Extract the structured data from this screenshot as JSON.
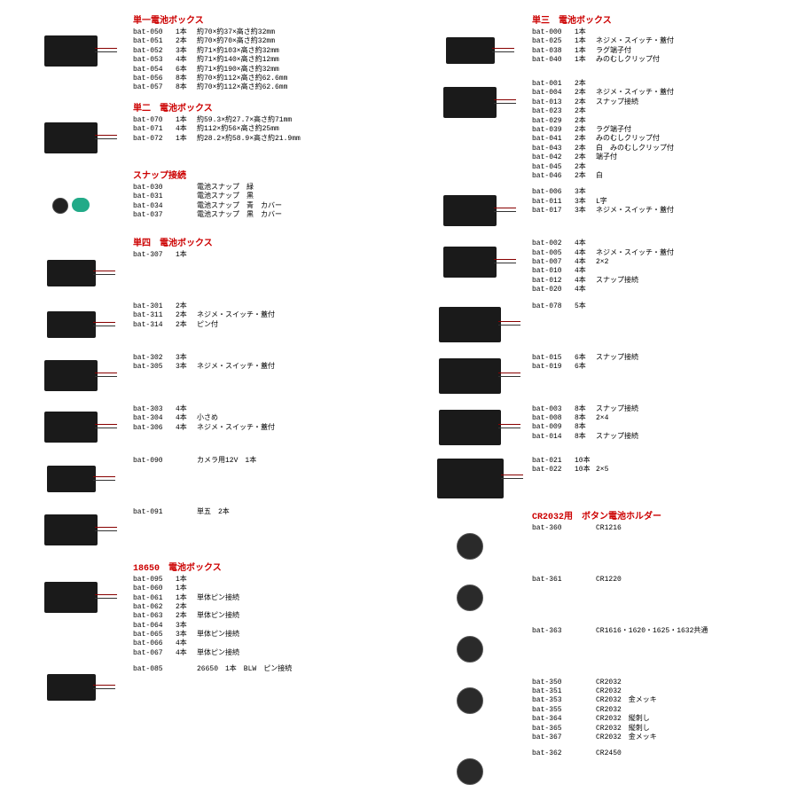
{
  "left": [
    {
      "title": "単一電池ボックス",
      "thumb": "s2",
      "items": [
        {
          "c": "bat-050",
          "q": "1本",
          "d": "約70×約37×高さ約32mm"
        },
        {
          "c": "bat-051",
          "q": "2本",
          "d": "約70×約70×高さ約32mm"
        },
        {
          "c": "bat-052",
          "q": "3本",
          "d": "約71×約103×高さ約32mm"
        },
        {
          "c": "bat-053",
          "q": "4本",
          "d": "約71×約140×高さ約12mm"
        },
        {
          "c": "bat-054",
          "q": "6本",
          "d": "約71×約190×高さ約32mm"
        },
        {
          "c": "bat-056",
          "q": "8本",
          "d": "約70×約112×高さ約62.6mm"
        },
        {
          "c": "bat-057",
          "q": "8本",
          "d": "約70×約112×高さ約62.6mm"
        }
      ]
    },
    {
      "title": "単二　電池ボックス",
      "thumb": "s2",
      "items": [
        {
          "c": "bat-070",
          "q": "1本",
          "d": "約59.3×約27.7×高さ約71mm"
        },
        {
          "c": "bat-071",
          "q": "4本",
          "d": "約112×約56×高さ約25mm"
        },
        {
          "c": "bat-072",
          "q": "1本",
          "d": "約28.2×約58.9×高さ約21.9mm"
        }
      ]
    },
    {
      "title": "スナップ接続",
      "thumb": "snap",
      "items": [
        {
          "c": "bat-030",
          "q": "",
          "d": "電池スナップ　緑"
        },
        {
          "c": "bat-031",
          "q": "",
          "d": "電池スナップ　黒"
        },
        {
          "c": "bat-034",
          "q": "",
          "d": "電池スナップ　青　カバー"
        },
        {
          "c": "bat-037",
          "q": "",
          "d": "電池スナップ　黒　カバー"
        }
      ]
    },
    {
      "title": "単四　電池ボックス",
      "thumb": "s1",
      "items": [
        {
          "c": "bat-307",
          "q": "1本",
          "d": ""
        }
      ]
    },
    {
      "title": "",
      "thumb": "s1",
      "items": [
        {
          "c": "bat-301",
          "q": "2本",
          "d": ""
        },
        {
          "c": "bat-311",
          "q": "2本",
          "d": "ネジメ・スイッチ・蓋付"
        },
        {
          "c": "bat-314",
          "q": "2本",
          "d": "ピン付"
        }
      ]
    },
    {
      "title": "",
      "thumb": "s2",
      "items": [
        {
          "c": "bat-302",
          "q": "3本",
          "d": ""
        },
        {
          "c": "bat-305",
          "q": "3本",
          "d": "ネジメ・スイッチ・蓋付"
        }
      ]
    },
    {
      "title": "",
      "thumb": "s2",
      "items": [
        {
          "c": "bat-303",
          "q": "4本",
          "d": ""
        },
        {
          "c": "bat-304",
          "q": "4本",
          "d": "小さめ"
        },
        {
          "c": "bat-306",
          "q": "4本",
          "d": "ネジメ・スイッチ・蓋付"
        }
      ]
    },
    {
      "title": "",
      "thumb": "s1",
      "items": [
        {
          "c": "bat-090",
          "q": "",
          "d": "カメラ用12V　1本"
        }
      ]
    },
    {
      "title": "",
      "thumb": "s2",
      "items": [
        {
          "c": "bat-091",
          "q": "",
          "d": "単五　2本"
        }
      ]
    },
    {
      "title": "18650　電池ボックス",
      "thumb": "s2",
      "items": [
        {
          "c": "bat-095",
          "q": "1本",
          "d": ""
        },
        {
          "c": "bat-060",
          "q": "1本",
          "d": ""
        },
        {
          "c": "bat-061",
          "q": "1本",
          "d": "単体ピン接続"
        },
        {
          "c": "bat-062",
          "q": "2本",
          "d": ""
        },
        {
          "c": "bat-063",
          "q": "2本",
          "d": "単体ピン接続"
        },
        {
          "c": "bat-064",
          "q": "3本",
          "d": ""
        },
        {
          "c": "bat-065",
          "q": "3本",
          "d": "単体ピン接続"
        },
        {
          "c": "bat-066",
          "q": "4本",
          "d": ""
        },
        {
          "c": "bat-067",
          "q": "4本",
          "d": "単体ピン接続"
        }
      ]
    },
    {
      "title": "",
      "thumb": "s1",
      "items": [
        {
          "c": "bat-085",
          "q": "",
          "d": "26650　1本　BLW　ピン接続"
        }
      ]
    }
  ],
  "right": [
    {
      "title": "単三　電池ボックス",
      "thumb": "s1",
      "items": [
        {
          "c": "bat-000",
          "q": "1本",
          "d": ""
        },
        {
          "c": "bat-025",
          "q": "1本",
          "d": "ネジメ・スイッチ・蓋付"
        },
        {
          "c": "bat-038",
          "q": "1本",
          "d": "ラグ端子付"
        },
        {
          "c": "bat-040",
          "q": "1本",
          "d": "みのむしクリップ付"
        }
      ]
    },
    {
      "title": "",
      "thumb": "s2",
      "items": [
        {
          "c": "bat-001",
          "q": "2本",
          "d": ""
        },
        {
          "c": "bat-004",
          "q": "2本",
          "d": "ネジメ・スイッチ・蓋付"
        },
        {
          "c": "bat-013",
          "q": "2本",
          "d": "スナップ接続"
        },
        {
          "c": "bat-023",
          "q": "2本",
          "d": ""
        },
        {
          "c": "bat-029",
          "q": "2本",
          "d": ""
        },
        {
          "c": "bat-039",
          "q": "2本",
          "d": "ラグ端子付"
        },
        {
          "c": "bat-041",
          "q": "2本",
          "d": "みのむしクリップ付"
        },
        {
          "c": "bat-043",
          "q": "2本",
          "d": "白　みのむしクリップ付"
        },
        {
          "c": "bat-042",
          "q": "2本",
          "d": "端子付"
        },
        {
          "c": "bat-045",
          "q": "2本",
          "d": ""
        },
        {
          "c": "bat-046",
          "q": "2本",
          "d": "白"
        }
      ]
    },
    {
      "title": "",
      "thumb": "s2",
      "items": [
        {
          "c": "bat-006",
          "q": "3本",
          "d": ""
        },
        {
          "c": "bat-011",
          "q": "3本",
          "d": "L字"
        },
        {
          "c": "bat-017",
          "q": "3本",
          "d": "ネジメ・スイッチ・蓋付"
        }
      ]
    },
    {
      "title": "",
      "thumb": "s2",
      "items": [
        {
          "c": "bat-002",
          "q": "4本",
          "d": ""
        },
        {
          "c": "bat-005",
          "q": "4本",
          "d": "ネジメ・スイッチ・蓋付"
        },
        {
          "c": "bat-007",
          "q": "4本",
          "d": "2×2"
        },
        {
          "c": "bat-010",
          "q": "4本",
          "d": ""
        },
        {
          "c": "bat-012",
          "q": "4本",
          "d": "スナップ接続"
        },
        {
          "c": "bat-020",
          "q": "4本",
          "d": ""
        }
      ]
    },
    {
      "title": "",
      "thumb": "s3",
      "items": [
        {
          "c": "bat-078",
          "q": "5本",
          "d": ""
        }
      ]
    },
    {
      "title": "",
      "thumb": "s3",
      "items": [
        {
          "c": "bat-015",
          "q": "6本",
          "d": "スナップ接続"
        },
        {
          "c": "bat-019",
          "q": "6本",
          "d": ""
        }
      ]
    },
    {
      "title": "",
      "thumb": "s3",
      "items": [
        {
          "c": "bat-003",
          "q": "8本",
          "d": "スナップ接続"
        },
        {
          "c": "bat-008",
          "q": "8本",
          "d": "2×4"
        },
        {
          "c": "bat-009",
          "q": "8本",
          "d": ""
        },
        {
          "c": "bat-014",
          "q": "8本",
          "d": "スナップ接続"
        }
      ]
    },
    {
      "title": "",
      "thumb": "s4",
      "items": [
        {
          "c": "bat-021",
          "q": "10本",
          "d": ""
        },
        {
          "c": "bat-022",
          "q": "10本",
          "d": "2×5"
        }
      ]
    },
    {
      "title": "CR2032用　ボタン電池ホルダー",
      "thumb": "coin",
      "items": [
        {
          "c": "bat-360",
          "q": "",
          "d": "CR1216"
        }
      ]
    },
    {
      "title": "",
      "thumb": "coin",
      "items": [
        {
          "c": "bat-361",
          "q": "",
          "d": "CR1220"
        }
      ]
    },
    {
      "title": "",
      "thumb": "coin",
      "items": [
        {
          "c": "bat-363",
          "q": "",
          "d": "CR1616・1620・1625・1632共通"
        }
      ]
    },
    {
      "title": "",
      "thumb": "coin",
      "items": [
        {
          "c": "bat-350",
          "q": "",
          "d": "CR2032"
        },
        {
          "c": "bat-351",
          "q": "",
          "d": "CR2032"
        },
        {
          "c": "bat-353",
          "q": "",
          "d": "CR2032　金メッキ"
        },
        {
          "c": "bat-355",
          "q": "",
          "d": "CR2032"
        },
        {
          "c": "bat-364",
          "q": "",
          "d": "CR2032　縦刺し"
        },
        {
          "c": "bat-365",
          "q": "",
          "d": "CR2032　縦刺し"
        },
        {
          "c": "bat-367",
          "q": "",
          "d": "CR2032　金メッキ"
        }
      ]
    },
    {
      "title": "",
      "thumb": "coin",
      "items": [
        {
          "c": "bat-362",
          "q": "",
          "d": "CR2450"
        }
      ]
    }
  ]
}
